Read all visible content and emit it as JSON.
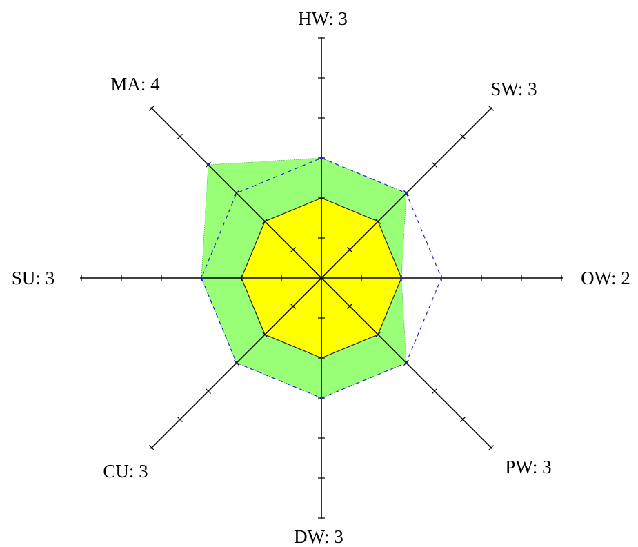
{
  "chart_data": {
    "type": "radar",
    "scale_max": 6,
    "tick_count": 6,
    "axes": [
      {
        "key": "HW",
        "label": "HW: 3",
        "score": 3
      },
      {
        "key": "SW",
        "label": "SW: 3",
        "score": 3
      },
      {
        "key": "OW",
        "label": "OW: 2",
        "score": 2
      },
      {
        "key": "PW",
        "label": "PW: 3",
        "score": 3
      },
      {
        "key": "DW",
        "label": "DW: 3",
        "score": 3
      },
      {
        "key": "CU",
        "label": "CU: 3",
        "score": 3
      },
      {
        "key": "SU",
        "label": "SU: 3",
        "score": 3
      },
      {
        "key": "MA",
        "label": "MA: 4",
        "score": 4
      }
    ],
    "series": [
      {
        "values": [
          3,
          3,
          2,
          3,
          3,
          3,
          3,
          4
        ],
        "style": "area",
        "fill": "#99ff77",
        "stroke": "#339933"
      },
      {
        "values": [
          2,
          2,
          2,
          2,
          2,
          2,
          2,
          2
        ],
        "style": "area",
        "fill": "#ffff00",
        "stroke": "#222222"
      },
      {
        "values": [
          3,
          3,
          3,
          3,
          3,
          3,
          3,
          3
        ],
        "style": "dashed-line",
        "stroke": "#2222cc"
      }
    ],
    "colors": {
      "outer_fill": "#99ff77",
      "inner_fill": "#ffff00",
      "reference_line": "#2222cc",
      "axis": "#000000"
    }
  }
}
